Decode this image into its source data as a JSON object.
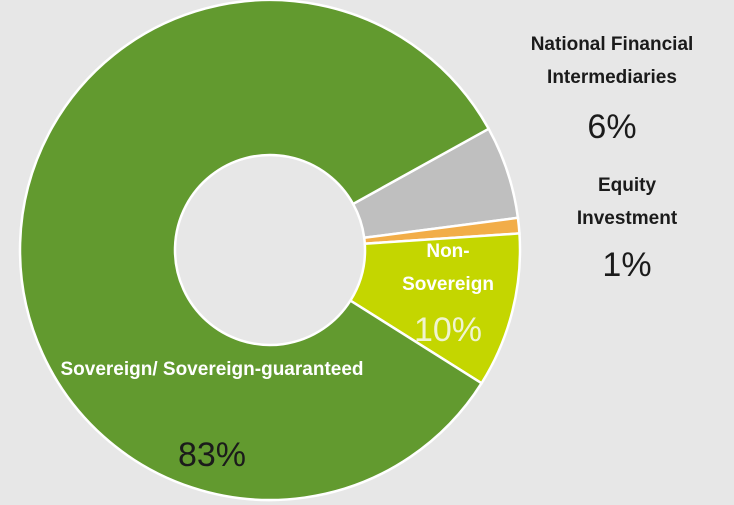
{
  "chart_data": {
    "type": "donut",
    "categories": [
      "National Financial Intermediaries",
      "Equity Investment",
      "Non-Sovereign",
      "Sovereign/ Sovereign-guaranteed"
    ],
    "values": [
      6,
      1,
      10,
      83
    ],
    "value_labels": [
      "6%",
      "1%",
      "10%",
      "83%"
    ],
    "colors": [
      "#bfbfbf",
      "#f2ad48",
      "#c4d600",
      "#629a2f"
    ]
  }
}
